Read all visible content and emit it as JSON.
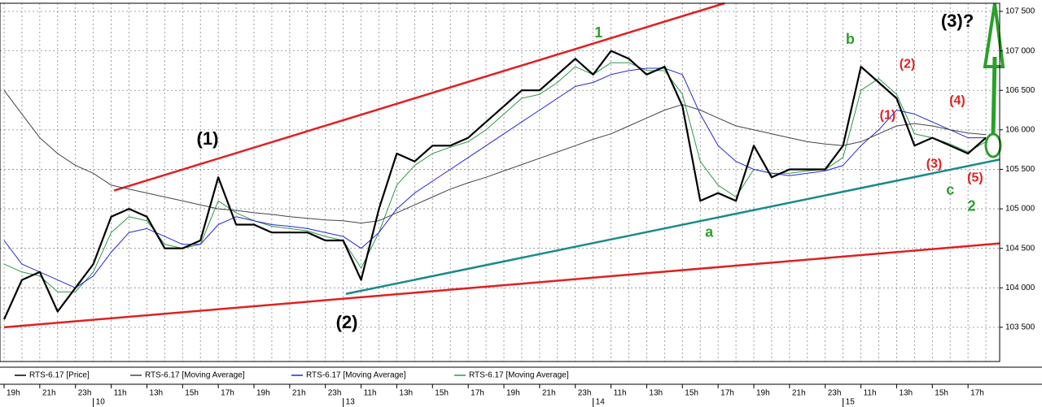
{
  "chart_data": {
    "type": "line",
    "legend": "bottom",
    "grid": true,
    "categories": [
      "19h",
      null,
      "21h",
      null,
      "23h",
      null,
      "11h",
      null,
      "13h",
      null,
      "15h",
      null,
      "17h",
      null,
      "19h",
      null,
      "21h",
      null,
      "23h",
      null,
      "11h",
      null,
      "13h",
      null,
      "15h",
      null,
      "17h",
      null,
      "19h",
      null,
      "21h",
      null,
      "23h",
      null,
      "11h",
      null,
      "13h",
      null,
      "15h",
      null,
      "17h",
      null,
      "19h",
      null,
      "21h",
      null,
      "23h",
      null,
      "11h",
      null,
      "13h",
      null,
      "15h",
      null,
      "17h",
      null
    ],
    "dates": [
      null,
      null,
      null,
      null,
      null,
      "10",
      null,
      null,
      null,
      null,
      null,
      null,
      null,
      null,
      null,
      null,
      null,
      null,
      null,
      "13",
      null,
      null,
      null,
      null,
      null,
      null,
      null,
      null,
      null,
      null,
      null,
      null,
      null,
      "14",
      null,
      null,
      null,
      null,
      null,
      null,
      null,
      null,
      null,
      null,
      null,
      null,
      null,
      "15",
      null,
      null,
      null,
      null,
      null,
      null,
      null,
      null
    ],
    "ylim": [
      103067,
      107603
    ],
    "yticks": [
      {
        "value": 103500,
        "label": "103 500"
      },
      {
        "value": 104000,
        "label": "104 000"
      },
      {
        "value": 104500,
        "label": "104 500"
      },
      {
        "value": 105000,
        "label": "105 000"
      },
      {
        "value": 105500,
        "label": "105 500"
      },
      {
        "value": 106000,
        "label": "106 000"
      },
      {
        "value": 106500,
        "label": "106 500"
      },
      {
        "value": 107000,
        "label": "107 000"
      },
      {
        "value": 107500,
        "label": "107 500"
      }
    ],
    "series": [
      {
        "name": "RTS-6.17 [Price]",
        "color": "#000000",
        "width": 2.2,
        "values": [
          103600,
          104100,
          104200,
          103700,
          104000,
          104300,
          104900,
          105000,
          104900,
          104500,
          104500,
          104600,
          105400,
          104800,
          104800,
          104700,
          104700,
          104700,
          104600,
          104600,
          104100,
          105000,
          105700,
          105600,
          105800,
          105800,
          105900,
          106100,
          106300,
          106500,
          106500,
          106700,
          106900,
          106700,
          107000,
          106900,
          106700,
          106800,
          106300,
          105100,
          105200,
          105100,
          105800,
          105400,
          105500,
          105500,
          105500,
          105800,
          106800,
          106600,
          106400,
          105800,
          105900,
          105800,
          105700,
          105900
        ]
      },
      {
        "name": "RTS-6.17 [Moving Average]",
        "color": "#444444",
        "width": 1,
        "values": [
          106500,
          106200,
          105900,
          105700,
          105550,
          105450,
          105300,
          105250,
          105200,
          105150,
          105100,
          105050,
          105000,
          104980,
          104950,
          104930,
          104900,
          104880,
          104860,
          104850,
          104820,
          104850,
          104950,
          105050,
          105150,
          105250,
          105330,
          105400,
          105480,
          105560,
          105640,
          105720,
          105800,
          105880,
          105950,
          106050,
          106150,
          106250,
          106320,
          106250,
          106150,
          106050,
          106000,
          105950,
          105900,
          105850,
          105820,
          105800,
          105850,
          105950,
          106050,
          106080,
          106050,
          106000,
          105960,
          105940
        ]
      },
      {
        "name": "RTS-6.17 [Moving Average]",
        "color": "#2626d9",
        "width": 1,
        "values": [
          104600,
          104300,
          104200,
          104100,
          104000,
          104150,
          104450,
          104700,
          104750,
          104650,
          104550,
          104550,
          104800,
          104900,
          104850,
          104800,
          104780,
          104750,
          104700,
          104650,
          104500,
          104700,
          105000,
          105200,
          105350,
          105500,
          105650,
          105800,
          105950,
          106100,
          106250,
          106400,
          106550,
          106600,
          106700,
          106750,
          106780,
          106780,
          106700,
          106200,
          105800,
          105600,
          105500,
          105450,
          105420,
          105450,
          105480,
          105550,
          105800,
          106000,
          106250,
          106200,
          106100,
          106000,
          105900,
          105900
        ]
      },
      {
        "name": "RTS-6.17 [Moving Average]",
        "color": "#2a9a4a",
        "width": 1,
        "values": [
          104300,
          104200,
          104150,
          103950,
          103950,
          104200,
          104700,
          104900,
          104850,
          104550,
          104500,
          104550,
          105100,
          104950,
          104850,
          104780,
          104750,
          104720,
          104650,
          104600,
          104250,
          104700,
          105300,
          105550,
          105700,
          105780,
          105850,
          106000,
          106200,
          106400,
          106450,
          106600,
          106800,
          106700,
          106850,
          106850,
          106750,
          106750,
          106450,
          105600,
          105300,
          105150,
          105500,
          105450,
          105450,
          105480,
          105500,
          105650,
          106500,
          106650,
          106450,
          105950,
          105900,
          105820,
          105720,
          105850
        ]
      }
    ],
    "trendlines": [
      {
        "color": "#e02020",
        "from": [
          6.16,
          105232
        ],
        "to": [
          40.36,
          107603
        ]
      },
      {
        "color": "#e02020",
        "from": [
          0,
          103500
        ],
        "to": [
          55.77,
          104562
        ]
      },
      {
        "color": "#1a8a8a",
        "from": [
          19.15,
          103923
        ],
        "to": [
          55.77,
          105624
        ]
      }
    ],
    "annotations": [
      {
        "text": "(1)",
        "color": "#000000",
        "size": 22,
        "x": 11.4,
        "y": 105871
      },
      {
        "text": "(2)",
        "color": "#000000",
        "size": 22,
        "x": 19.2,
        "y": 103551
      },
      {
        "text": "(3)?",
        "color": "#000000",
        "size": 22,
        "x": 53.4,
        "y": 107366
      },
      {
        "text": "1",
        "color": "#2aa02a",
        "size": 18,
        "x": 33.3,
        "y": 107222
      },
      {
        "text": "b",
        "color": "#2aa02a",
        "size": 18,
        "x": 47.4,
        "y": 107139
      },
      {
        "text": "a",
        "color": "#2aa02a",
        "size": 18,
        "x": 39.5,
        "y": 104696
      },
      {
        "text": "c",
        "color": "#2aa02a",
        "size": 18,
        "x": 53.0,
        "y": 105232
      },
      {
        "text": "2",
        "color": "#2aa02a",
        "size": 18,
        "x": 54.2,
        "y": 105026
      },
      {
        "text": "(2)",
        "color": "#e02020",
        "size": 16,
        "x": 50.6,
        "y": 106830
      },
      {
        "text": "(1)",
        "color": "#e02020",
        "size": 16,
        "x": 49.5,
        "y": 106180
      },
      {
        "text": "(4)",
        "color": "#e02020",
        "size": 16,
        "x": 53.4,
        "y": 106366
      },
      {
        "text": "(3)",
        "color": "#e02020",
        "size": 16,
        "x": 52.1,
        "y": 105562
      },
      {
        "text": "(5)",
        "color": "#e02020",
        "size": 16,
        "x": 54.4,
        "y": 105387
      }
    ]
  }
}
